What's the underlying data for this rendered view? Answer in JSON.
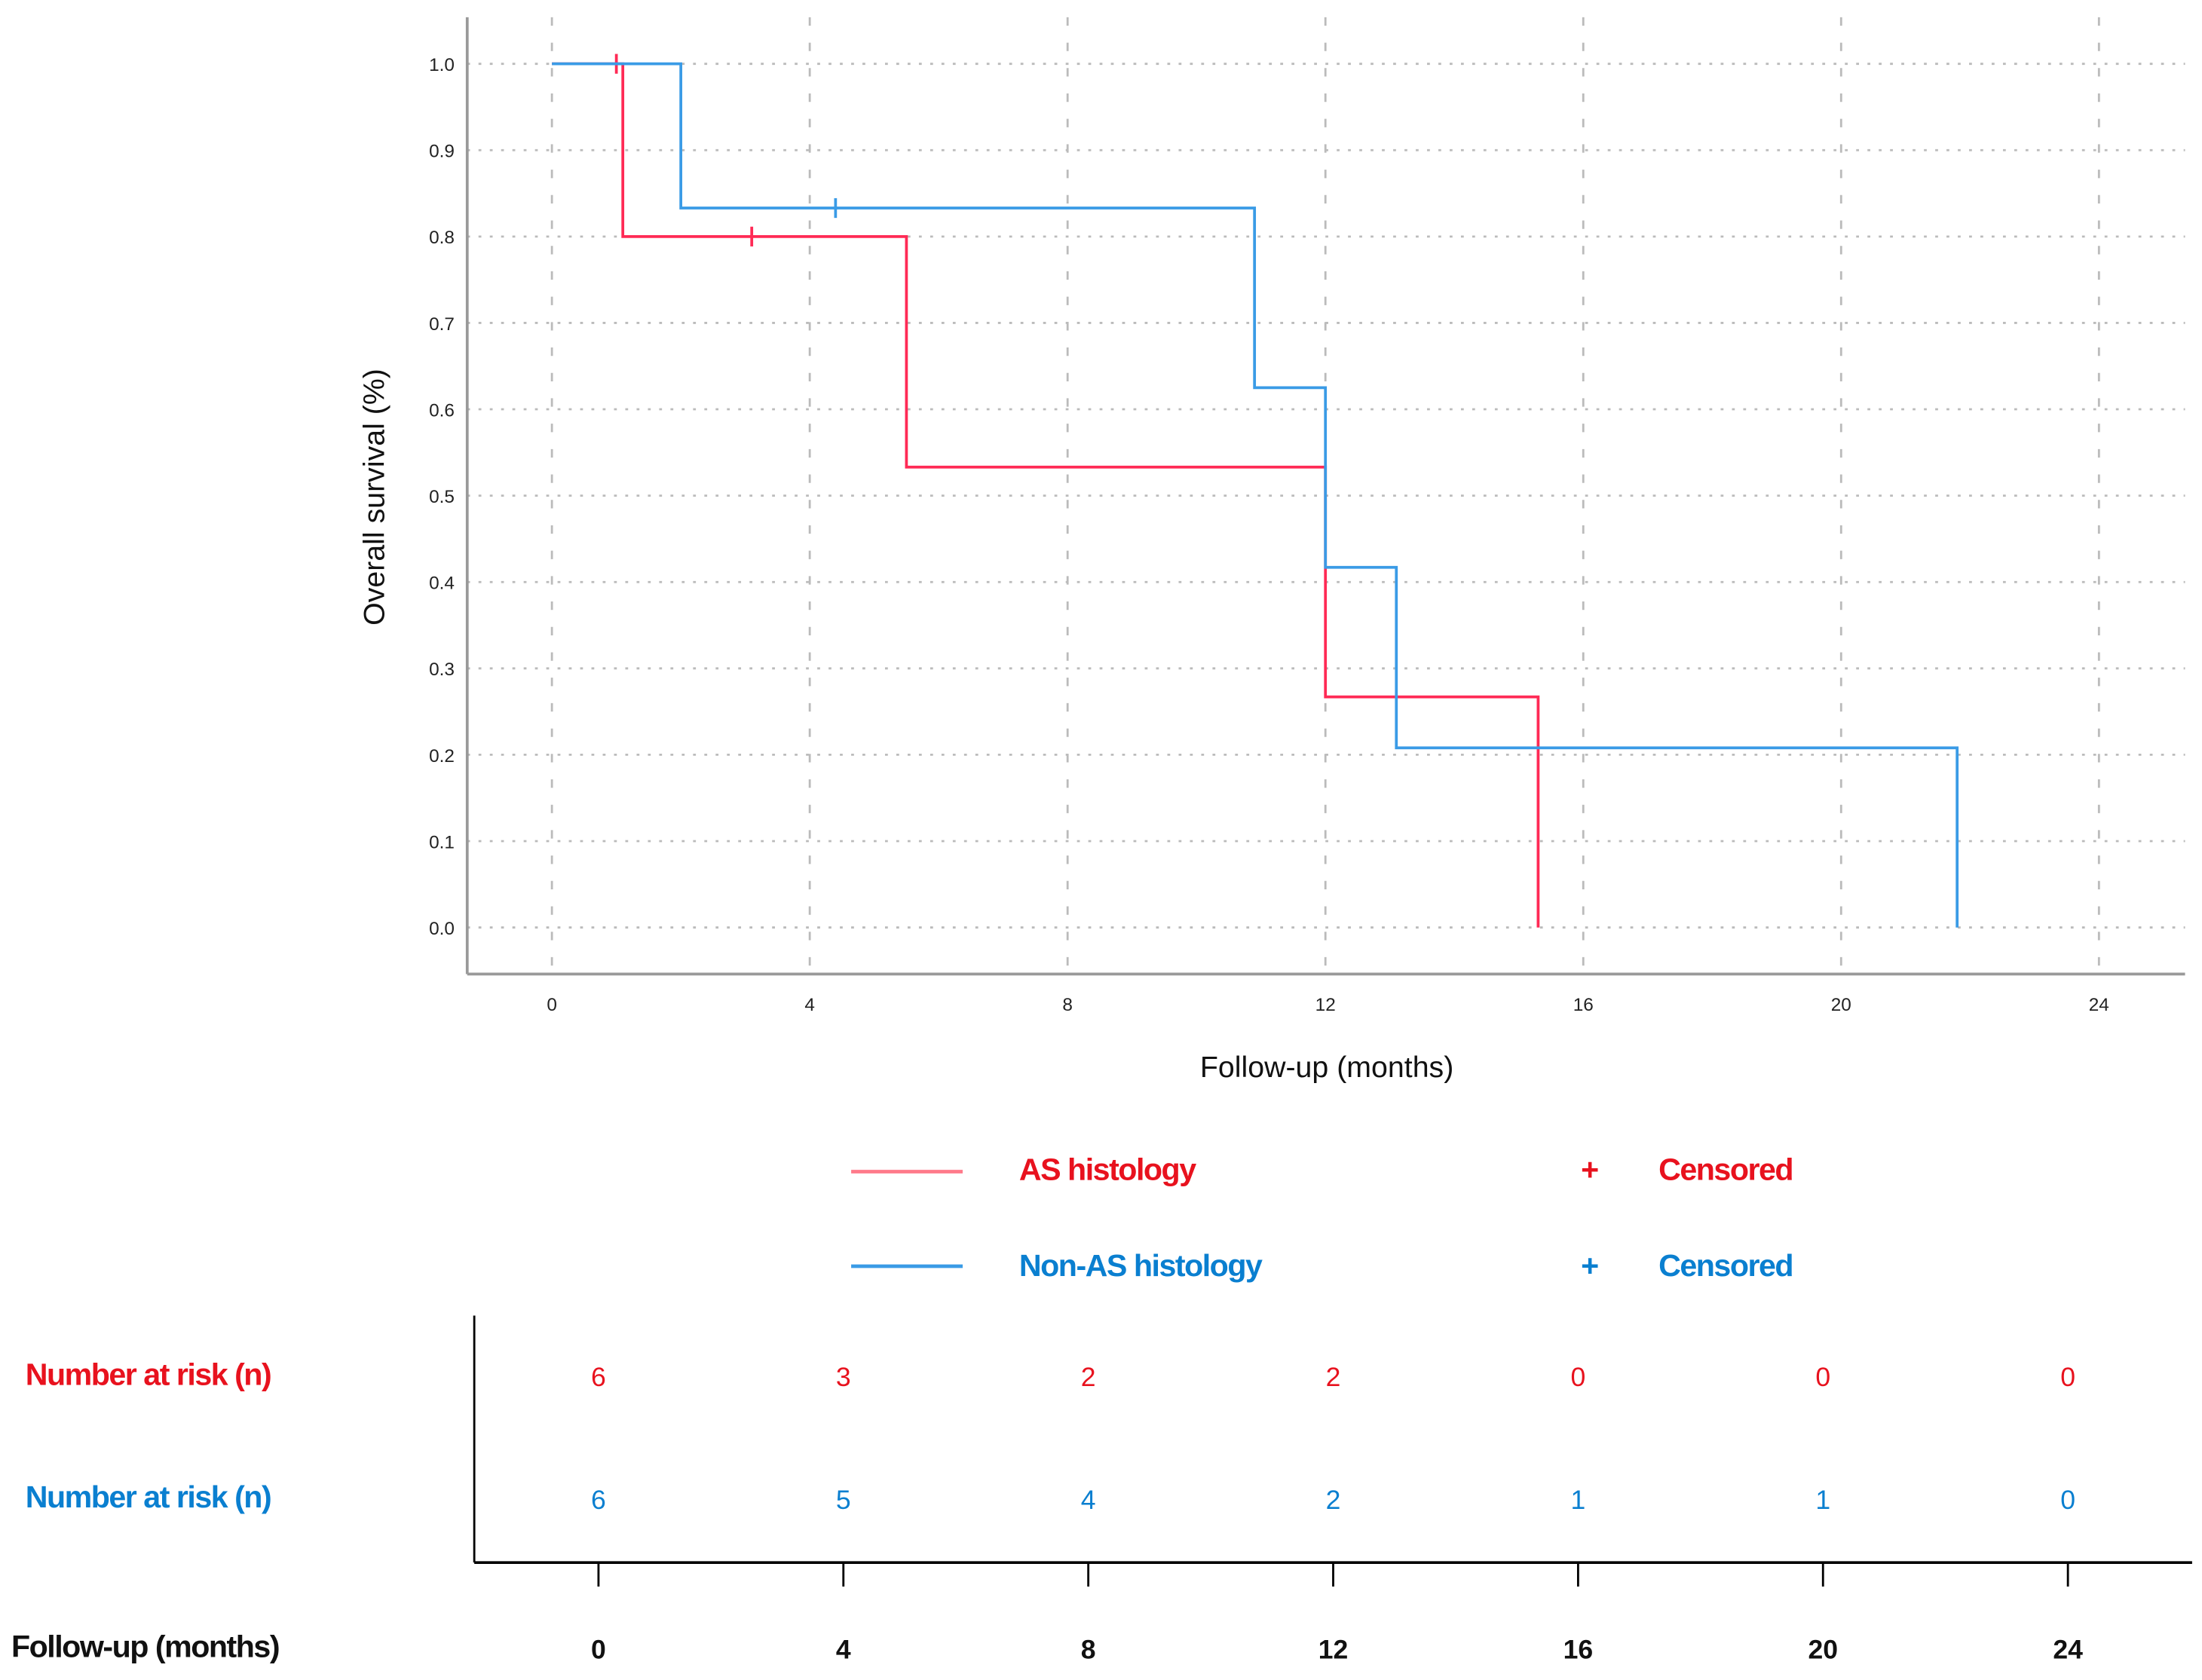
{
  "chart_data": {
    "type": "line",
    "subtype": "kaplan-meier step",
    "xlabel": "Follow-up (months)",
    "ylabel": "Overall survival (%)",
    "xlim": [
      0,
      24
    ],
    "ylim": [
      0,
      1.0
    ],
    "xticks": [
      "0",
      "4",
      "8",
      "12",
      "16",
      "20",
      "24"
    ],
    "xtick_values": [
      0,
      4,
      8,
      12,
      16,
      20,
      24
    ],
    "yticks": [
      "0.0",
      "0.1",
      "0.2",
      "0.3",
      "0.4",
      "0.5",
      "0.6",
      "0.7",
      "0.8",
      "0.9",
      "1.0"
    ],
    "ytick_values": [
      0,
      0.1,
      0.2,
      0.3,
      0.4,
      0.5,
      0.6,
      0.7,
      0.8,
      0.9,
      1.0
    ],
    "grid": true,
    "series": [
      {
        "name": "AS histology",
        "color": "#ff2a55",
        "steps": [
          [
            0,
            1.0
          ],
          [
            1.1,
            0.8
          ],
          [
            5.5,
            0.533
          ],
          [
            12.0,
            0.267
          ],
          [
            15.3,
            0.0
          ]
        ],
        "censored": [
          [
            1.0,
            1.0
          ],
          [
            3.1,
            0.8
          ]
        ]
      },
      {
        "name": "Non-AS histology",
        "color": "#3a9be6",
        "steps": [
          [
            0,
            1.0
          ],
          [
            2.0,
            0.833
          ],
          [
            10.9,
            0.625
          ],
          [
            12.0,
            0.417
          ],
          [
            13.1,
            0.208
          ],
          [
            21.8,
            0.0
          ]
        ],
        "censored": [
          [
            4.4,
            0.833
          ]
        ]
      }
    ],
    "legend": {
      "placement": "below",
      "entries": [
        {
          "label": "AS histology",
          "censor_symbol": "+",
          "censor_label": "Censored",
          "color": "#e8121e"
        },
        {
          "label": "Non-AS histology",
          "censor_symbol": "+",
          "censor_label": "Censored",
          "color": "#0a7fd0"
        }
      ]
    },
    "risk_table": {
      "row_labels": [
        "Number at risk (n)",
        "Number at risk (n)"
      ],
      "row_colors": [
        "#e8121e",
        "#0a7fd0"
      ],
      "rows": [
        [
          "6",
          "3",
          "2",
          "2",
          "0",
          "0",
          "0"
        ],
        [
          "6",
          "5",
          "4",
          "2",
          "1",
          "1",
          "0"
        ]
      ],
      "xlabel": "Follow-up (months)",
      "xticks": [
        "0",
        "4",
        "8",
        "12",
        "16",
        "20",
        "24"
      ]
    }
  }
}
